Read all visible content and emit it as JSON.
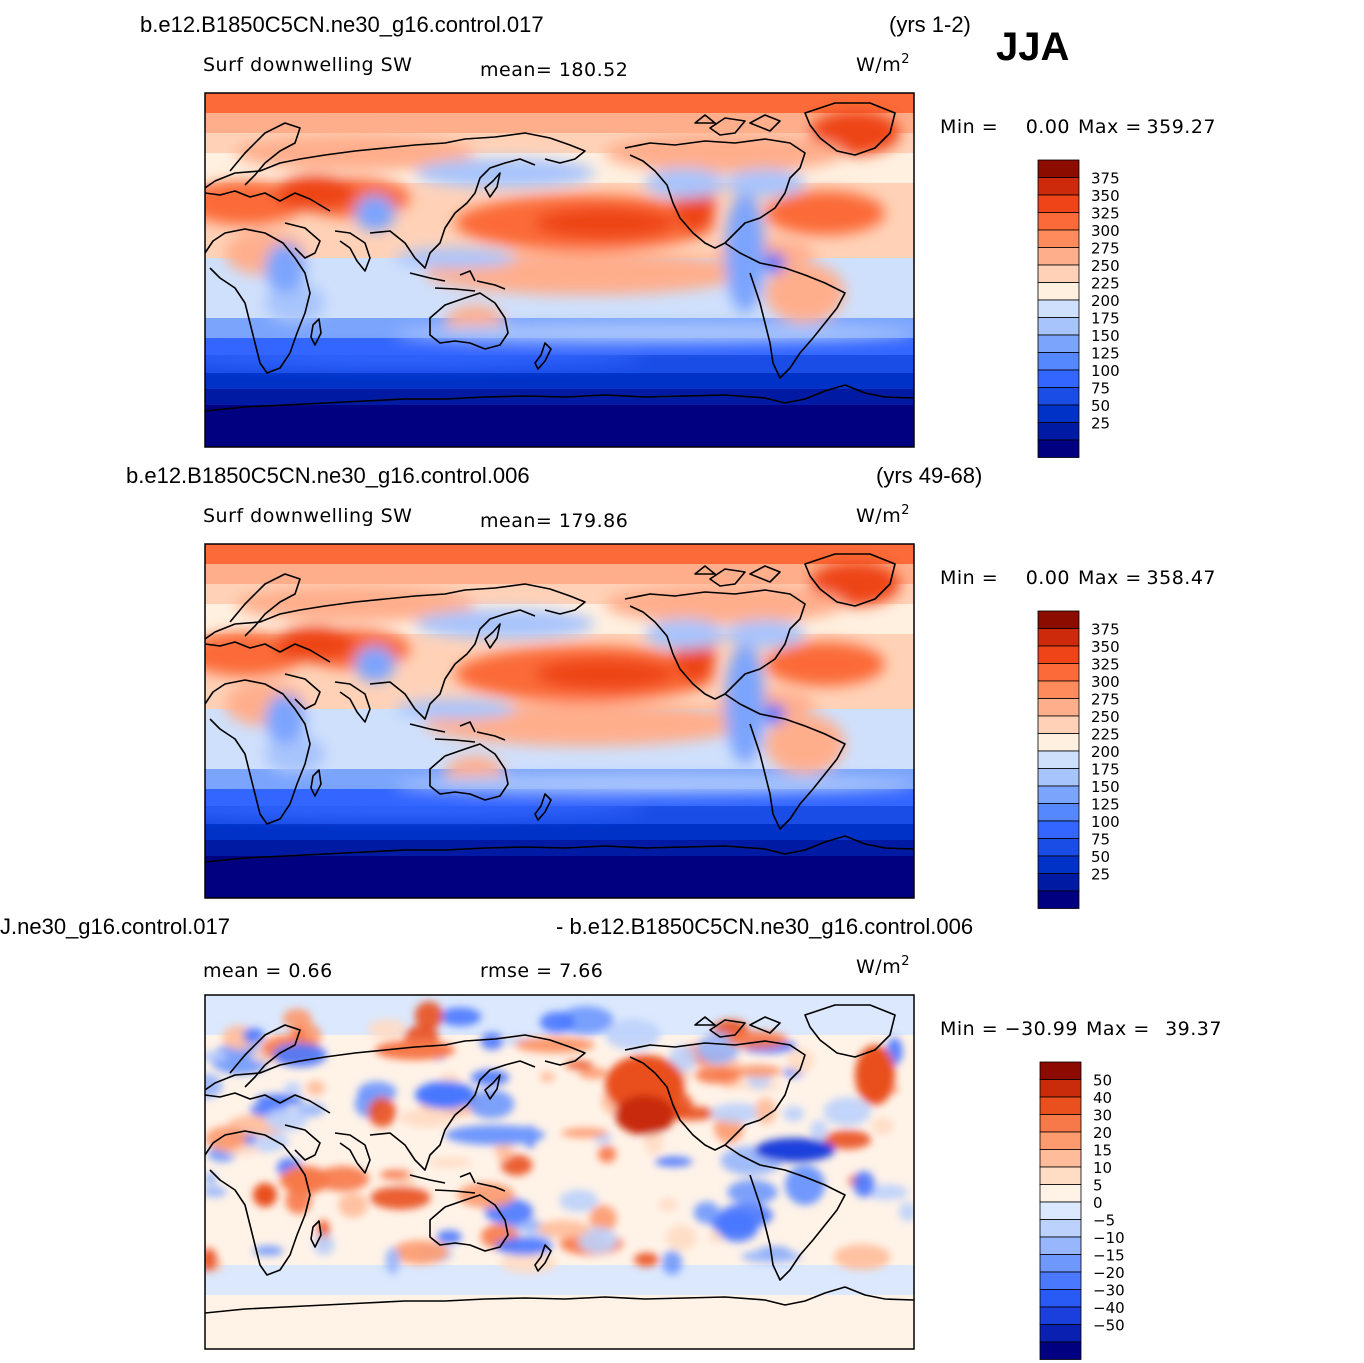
{
  "season": "JJA",
  "palettes": {
    "abs": [
      "#000080",
      "#001aa3",
      "#0032c8",
      "#1a4de6",
      "#3366ff",
      "#5588ff",
      "#7ba4fd",
      "#a8c4fc",
      "#cfe0fc",
      "#fff0e0",
      "#ffd2b8",
      "#ffae8c",
      "#ff8a5c",
      "#fb6a38",
      "#ee4418",
      "#cc2a0a",
      "#8c0c00"
    ],
    "diff": [
      "#000080",
      "#0a20b0",
      "#1a3fdc",
      "#2a5af5",
      "#4a78ff",
      "#6f98fd",
      "#97b6fc",
      "#bcd2fc",
      "#dbe8fd",
      "#fff3e8",
      "#ffdcc4",
      "#ffbc9a",
      "#fd9a6e",
      "#f77848",
      "#e9501e",
      "#c82c0a",
      "#8c0a00"
    ]
  },
  "panels": [
    {
      "id": "case",
      "title_left": "b.e12.B1850C5CN.ne30_g16.control.017",
      "title_right": "(yrs 1-2)",
      "variable": "Surf  downwelling SW",
      "stat1": "mean=  180.52",
      "stat2": "",
      "units": "W/m",
      "units_exp": "2",
      "min_label": "Min  =",
      "min_value": "0.00",
      "max_label": "Max  =",
      "max_value": "359.27",
      "palette": "abs",
      "levels": [
        "375",
        "350",
        "325",
        "300",
        "275",
        "250",
        "225",
        "200",
        "175",
        "150",
        "125",
        "100",
        "75",
        "50",
        "25"
      ]
    },
    {
      "id": "control",
      "title_left": "b.e12.B1850C5CN.ne30_g16.control.006",
      "title_right": "(yrs 49-68)",
      "variable": "Surf  downwelling SW",
      "stat1": "mean=  179.86",
      "stat2": "",
      "units": "W/m",
      "units_exp": "2",
      "min_label": "Min  =",
      "min_value": "0.00",
      "max_label": "Max  =",
      "max_value": "358.47",
      "palette": "abs",
      "levels": [
        "375",
        "350",
        "325",
        "300",
        "275",
        "250",
        "225",
        "200",
        "175",
        "150",
        "125",
        "100",
        "75",
        "50",
        "25"
      ]
    },
    {
      "id": "diff",
      "title_left": "J.ne30_g16.control.017",
      "title_right": "- b.e12.B1850C5CN.ne30_g16.control.006",
      "variable": "",
      "stat1": "mean  =     0.66",
      "stat2": "rmse  =     7.66",
      "units": "W/m",
      "units_exp": "2",
      "min_label": "Min  =",
      "min_value": "−30.99",
      "max_label": "Max  =",
      "max_value": "39.37",
      "palette": "diff",
      "levels": [
        "50",
        "40",
        "30",
        "20",
        "15",
        "10",
        "5",
        "0",
        "−5",
        "−10",
        "−15",
        "−20",
        "−30",
        "−40",
        "−50"
      ]
    }
  ]
}
